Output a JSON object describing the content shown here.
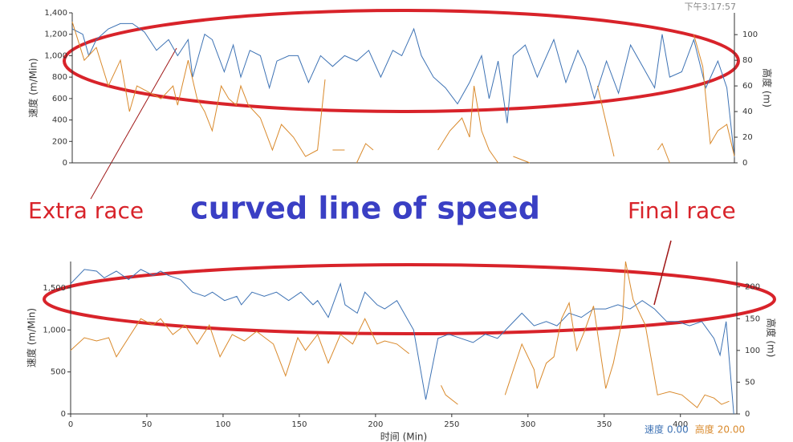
{
  "chart_data": [
    {
      "type": "line",
      "timestamp": "下午3:17:57",
      "y_label": "速度 (m/Min)",
      "y2_label": "高度 (m)",
      "xlim": [
        0,
        440
      ],
      "ylim": [
        0,
        1400
      ],
      "y2lim": [
        0,
        117
      ],
      "yticks": [
        0,
        200,
        400,
        600,
        800,
        {
          "value": 1000,
          "label": "1,000"
        },
        {
          "value": 1200,
          "label": "1,200"
        },
        {
          "value": 1400,
          "label": "1,400"
        }
      ],
      "y2ticks": [
        0,
        20,
        40,
        60,
        80,
        100
      ],
      "series": [
        {
          "color": "#3d72b4",
          "x": [
            0,
            7,
            11,
            16,
            24,
            32,
            40,
            48,
            56,
            64,
            70,
            77,
            80,
            88,
            93,
            101,
            107,
            112,
            118,
            125,
            131,
            136,
            144,
            150,
            157,
            165,
            173,
            181,
            189,
            197,
            205,
            213,
            219,
            227,
            232,
            240,
            248,
            256,
            264,
            272,
            277,
            283,
            289,
            293,
            301,
            309,
            320,
            328,
            336,
            341,
            347,
            355,
            363,
            371,
            379,
            387,
            392,
            397,
            405,
            413,
            421,
            429,
            435,
            440
          ],
          "values": [
            1250,
            1200,
            1000,
            1150,
            1250,
            1300,
            1300,
            1220,
            1050,
            1150,
            1000,
            1150,
            800,
            1200,
            1150,
            850,
            1100,
            800,
            1050,
            1000,
            700,
            950,
            1000,
            1000,
            750,
            1000,
            900,
            1000,
            950,
            1050,
            800,
            1050,
            1000,
            1250,
            1000,
            800,
            700,
            550,
            750,
            1000,
            600,
            950,
            370,
            1000,
            1100,
            800,
            1150,
            750,
            1050,
            900,
            600,
            950,
            650,
            1100,
            900,
            700,
            1200,
            800,
            850,
            1150,
            700,
            950,
            700,
            50
          ]
        },
        {
          "color": "#d9892b",
          "axis": "y2",
          "x": [
            0,
            8,
            16,
            24,
            32,
            38,
            43,
            51,
            59,
            67,
            70,
            77,
            83,
            88,
            93,
            99,
            104,
            109,
            112,
            117,
            125,
            133,
            139,
            147,
            155,
            163,
            168,
            169,
            173,
            181,
            182,
            189,
            195,
            200,
            201,
            243,
            251,
            259,
            264,
            267,
            272,
            277,
            283,
            284,
            293,
            304,
            305,
            315,
            316,
            336,
            337,
            349,
            360,
            361,
            389,
            392,
            397,
            398,
            413,
            419,
            424,
            429,
            435,
            440
          ],
          "values": [
            110,
            80,
            90,
            60,
            80,
            40,
            60,
            55,
            50,
            60,
            45,
            80,
            50,
            40,
            25,
            60,
            50,
            45,
            60,
            45,
            35,
            10,
            30,
            20,
            5,
            10,
            65,
            null,
            10,
            10,
            null,
            0,
            15,
            10,
            null,
            10,
            25,
            35,
            20,
            60,
            25,
            10,
            0,
            null,
            5,
            0,
            null,
            15,
            null,
            15,
            null,
            60,
            5,
            null,
            10,
            15,
            0,
            null,
            100,
            75,
            15,
            25,
            30,
            5
          ]
        }
      ]
    },
    {
      "type": "line",
      "x_label": "时间 (Min)",
      "y_label": "速度 (m/Min)",
      "y2_label": "高度 (m)",
      "xlim": [
        0,
        437
      ],
      "ylim": [
        0,
        1815
      ],
      "y2lim": [
        0,
        240
      ],
      "xticks": [
        0,
        50,
        100,
        150,
        200,
        250,
        300,
        350,
        400
      ],
      "yticks": [
        0,
        500,
        {
          "value": 1000,
          "label": "1,000"
        },
        {
          "value": 1500,
          "label": "1,500"
        }
      ],
      "y2ticks": [
        0,
        50,
        100,
        150,
        200
      ],
      "series": [
        {
          "name": "速度",
          "readout": "0.00",
          "color": "#3d72b4",
          "x": [
            0,
            9,
            17,
            22,
            30,
            38,
            46,
            54,
            59,
            64,
            72,
            80,
            88,
            93,
            101,
            109,
            112,
            119,
            127,
            135,
            143,
            151,
            159,
            162,
            169,
            177,
            180,
            188,
            193,
            201,
            206,
            214,
            225,
            233,
            241,
            248,
            256,
            264,
            272,
            280,
            288,
            296,
            304,
            312,
            319,
            327,
            335,
            343,
            351,
            359,
            367,
            375,
            383,
            391,
            398,
            406,
            414,
            422,
            426,
            430,
            435
          ],
          "values": [
            1550,
            1720,
            1700,
            1620,
            1700,
            1600,
            1720,
            1650,
            1700,
            1650,
            1600,
            1450,
            1400,
            1450,
            1350,
            1400,
            1300,
            1450,
            1400,
            1450,
            1350,
            1450,
            1300,
            1350,
            1150,
            1550,
            1300,
            1200,
            1450,
            1300,
            1250,
            1350,
            1000,
            170,
            900,
            950,
            900,
            850,
            950,
            900,
            1050,
            1200,
            1050,
            1100,
            1050,
            1200,
            1150,
            1250,
            1250,
            1300,
            1250,
            1350,
            1250,
            1100,
            1100,
            1050,
            1100,
            900,
            700,
            1100,
            0
          ]
        },
        {
          "name": "高度",
          "readout": "20.00",
          "color": "#d9892b",
          "axis": "y2",
          "x": [
            0,
            9,
            17,
            25,
            30,
            38,
            46,
            54,
            59,
            67,
            75,
            83,
            91,
            98,
            106,
            114,
            122,
            133,
            141,
            149,
            154,
            162,
            169,
            177,
            185,
            193,
            201,
            206,
            214,
            222,
            223,
            243,
            246,
            254,
            255,
            285,
            296,
            304,
            306,
            312,
            317,
            322,
            327,
            332,
            337,
            343,
            351,
            356,
            362,
            364,
            369,
            375,
            377,
            385,
            393,
            401,
            406,
            411,
            416,
            422,
            427,
            432
          ],
          "values": [
            100,
            120,
            115,
            120,
            90,
            120,
            150,
            140,
            150,
            125,
            140,
            110,
            140,
            90,
            125,
            115,
            130,
            110,
            60,
            120,
            100,
            125,
            80,
            125,
            110,
            150,
            110,
            115,
            110,
            95,
            null,
            45,
            30,
            15,
            null,
            30,
            110,
            70,
            40,
            80,
            90,
            150,
            175,
            100,
            130,
            170,
            40,
            80,
            150,
            240,
            180,
            150,
            140,
            30,
            35,
            30,
            20,
            10,
            30,
            25,
            15,
            20
          ]
        }
      ]
    }
  ],
  "annotations": {
    "extra_race": "Extra race",
    "headline": "curved line of speed",
    "final_race": "Final race"
  }
}
